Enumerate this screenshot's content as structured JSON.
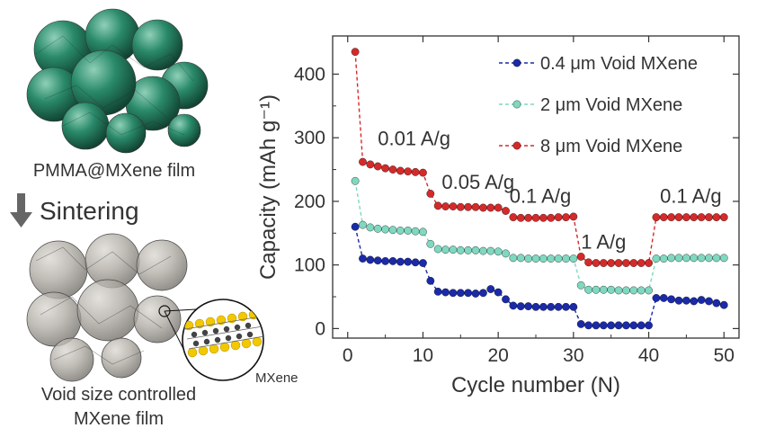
{
  "schematic": {
    "top_film_label": "PMMA@MXene film",
    "process_label": "Sintering",
    "inset_label": "MXene",
    "bottom_film_label_line1": "Void size controlled",
    "bottom_film_label_line2": "MXene film",
    "sphere_color_top": "#1f7a5c",
    "sphere_color_bottom": "#9a958c",
    "mxene_metal_color": "#f2c800",
    "arrow_color": "#666666",
    "icons": [
      "pmma-sphere-cluster-image",
      "void-mxene-film-image",
      "mxene-structure-inset-image",
      "down-arrow-icon"
    ]
  },
  "chart_data": {
    "type": "scatter",
    "xlabel": "Cycle number (N)",
    "ylabel": "Capacity (mAh g⁻¹)",
    "xlim": [
      -2,
      52
    ],
    "ylim": [
      -15,
      460
    ],
    "xticks": [
      0,
      10,
      20,
      30,
      40,
      50
    ],
    "yticks": [
      0,
      100,
      200,
      300,
      400
    ],
    "grid": false,
    "legend_position": "top-right",
    "line_style": "dashed",
    "series": [
      {
        "name": "0.4 μm Void MXene",
        "color": "#1a2aa8",
        "x": [
          1,
          2,
          3,
          4,
          5,
          6,
          7,
          8,
          9,
          10,
          11,
          12,
          13,
          14,
          15,
          16,
          17,
          18,
          19,
          20,
          21,
          22,
          23,
          24,
          25,
          26,
          27,
          28,
          29,
          30,
          31,
          32,
          33,
          34,
          35,
          36,
          37,
          38,
          39,
          40,
          41,
          42,
          43,
          44,
          45,
          46,
          47,
          48,
          49,
          50
        ],
        "values": [
          160,
          110,
          108,
          107,
          106,
          106,
          105,
          105,
          104,
          103,
          75,
          58,
          57,
          56,
          56,
          56,
          55,
          56,
          62,
          57,
          46,
          36,
          35,
          35,
          34,
          34,
          34,
          34,
          34,
          34,
          7,
          5,
          5,
          5,
          5,
          5,
          5,
          5,
          5,
          5,
          48,
          48,
          46,
          44,
          44,
          43,
          45,
          43,
          40,
          37
        ]
      },
      {
        "name": "2 μm Void MXene",
        "color": "#7fd8bf",
        "x": [
          1,
          2,
          3,
          4,
          5,
          6,
          7,
          8,
          9,
          10,
          11,
          12,
          13,
          14,
          15,
          16,
          17,
          18,
          19,
          20,
          21,
          22,
          23,
          24,
          25,
          26,
          27,
          28,
          29,
          30,
          31,
          32,
          33,
          34,
          35,
          36,
          37,
          38,
          39,
          40,
          41,
          42,
          43,
          44,
          45,
          46,
          47,
          48,
          49,
          50
        ],
        "values": [
          232,
          163,
          159,
          157,
          156,
          155,
          154,
          154,
          153,
          152,
          133,
          125,
          124,
          124,
          123,
          123,
          123,
          122,
          122,
          121,
          118,
          111,
          111,
          110,
          110,
          110,
          110,
          110,
          110,
          110,
          68,
          61,
          61,
          61,
          61,
          60,
          60,
          60,
          60,
          60,
          110,
          110,
          111,
          111,
          111,
          111,
          111,
          111,
          111,
          111
        ]
      },
      {
        "name": "8 μm Void MXene",
        "color": "#d42a2a",
        "x": [
          1,
          2,
          3,
          4,
          5,
          6,
          7,
          8,
          9,
          10,
          11,
          12,
          13,
          14,
          15,
          16,
          17,
          18,
          19,
          20,
          21,
          22,
          23,
          24,
          25,
          26,
          27,
          28,
          29,
          30,
          31,
          32,
          33,
          34,
          35,
          36,
          37,
          38,
          39,
          40,
          41,
          42,
          43,
          44,
          45,
          46,
          47,
          48,
          49,
          50
        ],
        "values": [
          435,
          262,
          258,
          255,
          252,
          250,
          248,
          247,
          246,
          245,
          212,
          193,
          192,
          192,
          191,
          191,
          191,
          190,
          190,
          190,
          185,
          175,
          174,
          174,
          174,
          174,
          174,
          175,
          175,
          176,
          113,
          104,
          103,
          103,
          103,
          103,
          103,
          103,
          103,
          103,
          175,
          175,
          175,
          175,
          175,
          175,
          175,
          175,
          175,
          175
        ]
      }
    ],
    "annotations": [
      {
        "text": "0.01 A/g",
        "x": 4,
        "y": 288
      },
      {
        "text": "0.05 A/g",
        "x": 12.5,
        "y": 220
      },
      {
        "text": "0.1 A/g",
        "x": 21.5,
        "y": 198
      },
      {
        "text": "1 A/g",
        "x": 31,
        "y": 126
      },
      {
        "text": "0.1 A/g",
        "x": 41.5,
        "y": 198
      }
    ]
  }
}
